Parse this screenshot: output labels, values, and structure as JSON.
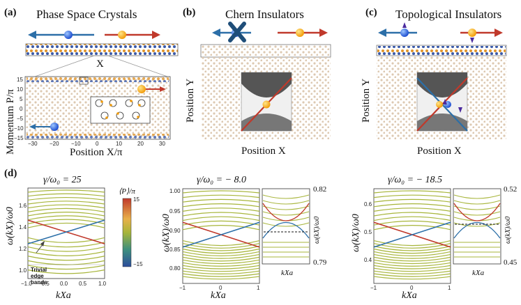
{
  "panels": {
    "a": {
      "label": "(a)",
      "title": "Phase Space Crystals",
      "x_marker": "X",
      "ylabel": "Momentum P/π",
      "xlabel": "Position X/π",
      "yticks": [
        "15",
        "10",
        "5",
        "0",
        "−5",
        "−10",
        "−15"
      ],
      "xticks": [
        "−30",
        "−20",
        "−10",
        "0",
        "10",
        "20",
        "30"
      ]
    },
    "b": {
      "label": "(b)",
      "title": "Chern Insulators",
      "ylabel": "Position Y",
      "xlabel": "Position X"
    },
    "c": {
      "label": "(c)",
      "title": "Topological Insulators",
      "ylabel": "Position Y",
      "xlabel": "Position X"
    },
    "d": {
      "label": "(d)"
    }
  },
  "band_plots": [
    {
      "gamma": "γ/ω₀ = 25",
      "yticks": [
        "1.6",
        "1.4",
        "1.2",
        "1.0"
      ],
      "xticks": [
        "−1.0",
        "−0.5",
        "0.0",
        "0.5",
        "1.0"
      ],
      "ylabel": "ω(kX)/ω0",
      "xlabel": "kXa",
      "annotation": "Trivial edge bands"
    },
    {
      "gamma": "γ/ω₀ = − 8.0",
      "yticks": [
        "1.00",
        "0.95",
        "0.90",
        "0.85",
        "0.80"
      ],
      "xticks": [
        "−1",
        "0",
        "1"
      ],
      "ylabel": "ω(kX)/ω0",
      "xlabel": "kXa",
      "inset": {
        "ymax": "0.82",
        "ymin": "0.79",
        "ylabel": "ω(kX)/ω0",
        "xlabel": "kXa"
      }
    },
    {
      "gamma": "γ/ω₀ = − 18.5",
      "yticks": [
        "0.6",
        "0.5",
        "0.4"
      ],
      "xticks": [
        "−1",
        "0",
        "1"
      ],
      "ylabel": "ω(kX)/ω0",
      "xlabel": "kXa",
      "inset": {
        "ymax": "0.52",
        "ymin": "0.45",
        "ylabel": "ω(kX)/ω0",
        "xlabel": "kXa"
      }
    }
  ],
  "colorbar": {
    "label": "⟨P⟩/π",
    "max": "15",
    "min": "−15"
  },
  "colors": {
    "red": "#c0392b",
    "blue": "#2c6fa8",
    "olive": "#a7b53a",
    "dot": "#d9c8b4",
    "navy": "#1f4e79"
  }
}
